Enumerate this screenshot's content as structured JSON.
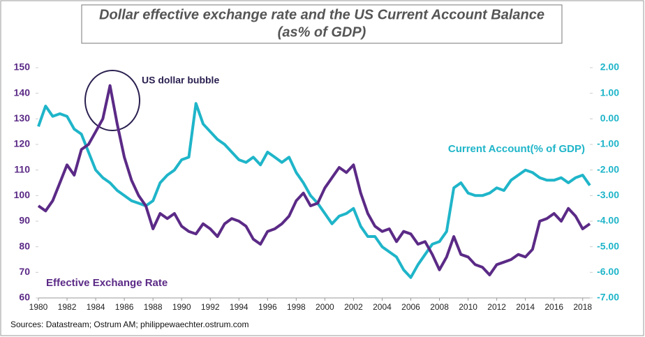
{
  "chart_data": {
    "type": "line",
    "title": [
      "Dollar effective exchange rate and the US Current Account Balance",
      "(as% of GDP)"
    ],
    "annotations": [
      "US dollar bubble"
    ],
    "source": "Sources: Datastream; Ostrum AM; philippewaechter.ostrum.com",
    "x": [
      1980,
      1980.5,
      1981,
      1981.5,
      1982,
      1982.5,
      1983,
      1983.5,
      1984,
      1984.5,
      1985,
      1985.5,
      1986,
      1986.5,
      1987,
      1987.5,
      1988,
      1988.5,
      1989,
      1989.5,
      1990,
      1990.5,
      1991,
      1991.5,
      1992,
      1992.5,
      1993,
      1993.5,
      1994,
      1994.5,
      1995,
      1995.5,
      1996,
      1996.5,
      1997,
      1997.5,
      1998,
      1998.5,
      1999,
      1999.5,
      2000,
      2000.5,
      2001,
      2001.5,
      2002,
      2002.5,
      2003,
      2003.5,
      2004,
      2004.5,
      2005,
      2005.5,
      2006,
      2006.5,
      2007,
      2007.5,
      2008,
      2008.5,
      2009,
      2009.5,
      2010,
      2010.5,
      2011,
      2011.5,
      2012,
      2012.5,
      2013,
      2013.5,
      2014,
      2014.5,
      2015,
      2015.5,
      2016,
      2016.5,
      2017,
      2017.5,
      2018,
      2018.5
    ],
    "series": [
      {
        "name": "Effective Exchange Rate",
        "color": "#5b2a86",
        "values": [
          96,
          94,
          98,
          105,
          112,
          108,
          118,
          120,
          125,
          130,
          143,
          128,
          115,
          106,
          100,
          96,
          87,
          93,
          91,
          93,
          88,
          86,
          85,
          89,
          87,
          84,
          89,
          91,
          90,
          88,
          83,
          81,
          86,
          87,
          89,
          92,
          98,
          101,
          96,
          97,
          103,
          107,
          111,
          109,
          112,
          101,
          93,
          88,
          86,
          87,
          82,
          86,
          85,
          81,
          82,
          77,
          71,
          76,
          84,
          77,
          76,
          73,
          72,
          69,
          73,
          74,
          75,
          77,
          76,
          79,
          90,
          91,
          93,
          90,
          95,
          92,
          87,
          89
        ]
      },
      {
        "name": "Current Account(% of GDP)",
        "color": "#1fb5c9",
        "axis": "y2",
        "values": [
          -0.3,
          0.5,
          0.1,
          0.2,
          0.1,
          -0.4,
          -0.6,
          -1.3,
          -2.0,
          -2.3,
          -2.5,
          -2.8,
          -3.0,
          -3.2,
          -3.3,
          -3.4,
          -3.2,
          -2.5,
          -2.2,
          -2.0,
          -1.6,
          -1.5,
          0.6,
          -0.2,
          -0.5,
          -0.8,
          -1.0,
          -1.3,
          -1.6,
          -1.7,
          -1.5,
          -1.8,
          -1.3,
          -1.5,
          -1.7,
          -1.5,
          -2.1,
          -2.5,
          -3.0,
          -3.3,
          -3.7,
          -4.1,
          -3.8,
          -3.7,
          -3.5,
          -4.2,
          -4.6,
          -4.6,
          -5.0,
          -5.2,
          -5.4,
          -5.9,
          -6.2,
          -5.7,
          -5.3,
          -4.9,
          -4.8,
          -4.4,
          -2.7,
          -2.5,
          -2.9,
          -3.0,
          -3.0,
          -2.9,
          -2.7,
          -2.8,
          -2.4,
          -2.2,
          -2.0,
          -2.1,
          -2.3,
          -2.4,
          -2.4,
          -2.3,
          -2.5,
          -2.3,
          -2.2,
          -2.6
        ]
      }
    ],
    "xlim": [
      1980,
      2018.5
    ],
    "xticks": [
      1980,
      1982,
      1984,
      1986,
      1988,
      1990,
      1992,
      1994,
      1996,
      1998,
      2000,
      2002,
      2004,
      2006,
      2008,
      2010,
      2012,
      2014,
      2016,
      2018
    ],
    "ylim": [
      60,
      150
    ],
    "yticks": [
      60,
      70,
      80,
      90,
      100,
      110,
      120,
      130,
      140,
      150
    ],
    "y2lim": [
      -7,
      2
    ],
    "y2ticks": [
      {
        "value": -7,
        "label": "-7.00"
      },
      {
        "value": -6,
        "label": "-6.00"
      },
      {
        "value": -5,
        "label": "-5.00"
      },
      {
        "value": -4,
        "label": "-4.00"
      },
      {
        "value": -3,
        "label": "-3.00"
      },
      {
        "value": -2,
        "label": "-2.00"
      },
      {
        "value": -1,
        "label": "-1.00"
      },
      {
        "value": 0,
        "label": "0.00"
      },
      {
        "value": 1,
        "label": "1.00"
      },
      {
        "value": 2,
        "label": "2.00"
      }
    ],
    "grid": false
  }
}
